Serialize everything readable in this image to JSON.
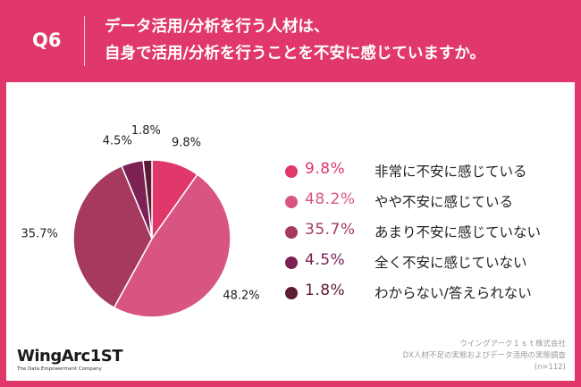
{
  "header": {
    "question_number": "Q6",
    "title_line1": "データ活用/分析を行う人材は、",
    "title_line2": "自身で活用/分析を行うことを不安に感じていますか。"
  },
  "chart_data": {
    "type": "pie",
    "title": "",
    "slices": [
      {
        "label": "非常に不安に感じている",
        "value": 9.8,
        "value_label": "9.8%",
        "color": "#e0386b"
      },
      {
        "label": "やや不安に感じている",
        "value": 48.2,
        "value_label": "48.2%",
        "color": "#d85583"
      },
      {
        "label": "あまり不安に感じていない",
        "value": 35.7,
        "value_label": "35.7%",
        "color": "#a53a5e"
      },
      {
        "label": "全く不安に感じていない",
        "value": 4.5,
        "value_label": "4.5%",
        "color": "#7b2153"
      },
      {
        "label": "わからない/答えられない",
        "value": 1.8,
        "value_label": "1.8%",
        "color": "#5b1b34"
      }
    ],
    "start_angle_deg": 0,
    "direction": "clockwise",
    "legend_position": "right"
  },
  "logo": {
    "name": "WingArc1ST",
    "tagline": "The Data Empowerment Company"
  },
  "source": {
    "line1": "ウイングアーク１ｓｔ株式会社",
    "line2": "DX人材不足の実態およびデータ活用の実態調査",
    "line3": "(n=112)"
  }
}
